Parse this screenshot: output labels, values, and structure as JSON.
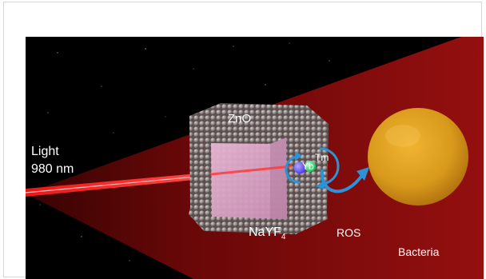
{
  "labels": {
    "light_line1": "Light",
    "light_line2": "980 nm",
    "shell": "ZnO",
    "core_base": "NaYF",
    "core_subscript": "4",
    "yb": "Yb",
    "tm": "Tm",
    "ros": "ROS",
    "bacteria": "Bacteria"
  },
  "colors": {
    "beam": "#ff2424",
    "cone": "#8a0a0a",
    "core": "#d9a4c4",
    "shell_sphere": "#9a8f8f",
    "yb_ion": "#6b5cff",
    "tm_ion": "#39e07a",
    "arrow": "#2b93d6",
    "bacteria": "#e0a020"
  },
  "icons": {
    "ion_arrows": "circular-arrow-icon",
    "ros_arrow": "curved-arrow-icon"
  }
}
